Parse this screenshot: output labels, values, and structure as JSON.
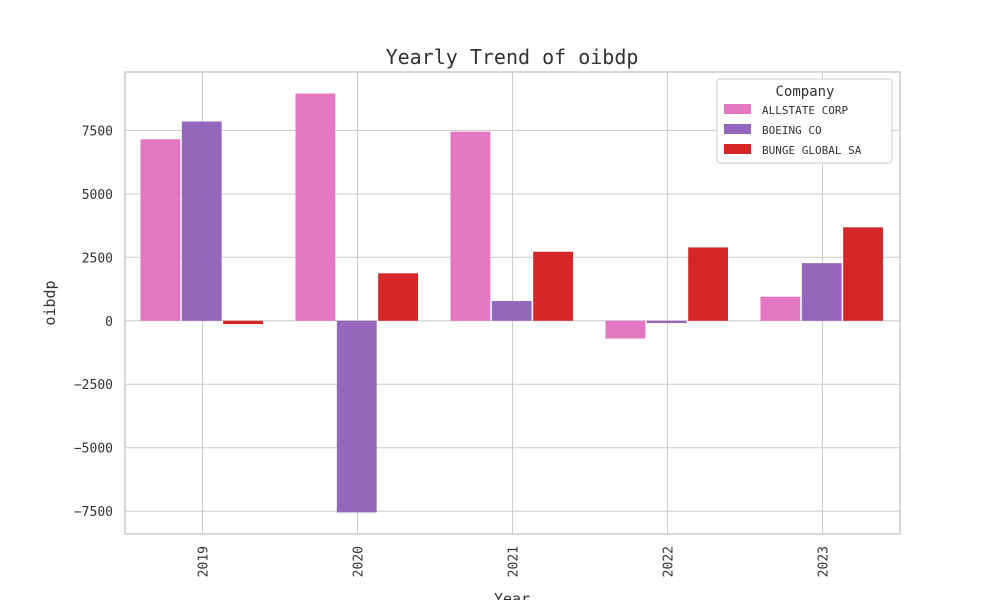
{
  "chart_data": {
    "type": "bar",
    "title": "Yearly Trend of oibdp",
    "xlabel": "Year",
    "ylabel": "oibdp",
    "categories": [
      "2019",
      "2020",
      "2021",
      "2022",
      "2023"
    ],
    "series": [
      {
        "name": "ALLSTATE CORP",
        "color": "#e377c2",
        "values": [
          7150,
          8950,
          7450,
          -700,
          950
        ]
      },
      {
        "name": "BOEING CO",
        "color": "#9467bd",
        "values": [
          7850,
          -7550,
          780,
          -90,
          2270
        ]
      },
      {
        "name": "BUNGE GLOBAL SA",
        "color": "#d62728",
        "values": [
          -130,
          1870,
          2720,
          2890,
          3680
        ]
      }
    ],
    "yticks": [
      -7500,
      -5000,
      -2500,
      0,
      2500,
      5000,
      7500
    ],
    "ytick_labels": [
      "−7500",
      "−5000",
      "−2500",
      "0",
      "2500",
      "5000",
      "7500"
    ],
    "ylim": [
      -8400,
      9800
    ],
    "legend_title": "Company",
    "legend_position": "top-right",
    "grid": true
  }
}
